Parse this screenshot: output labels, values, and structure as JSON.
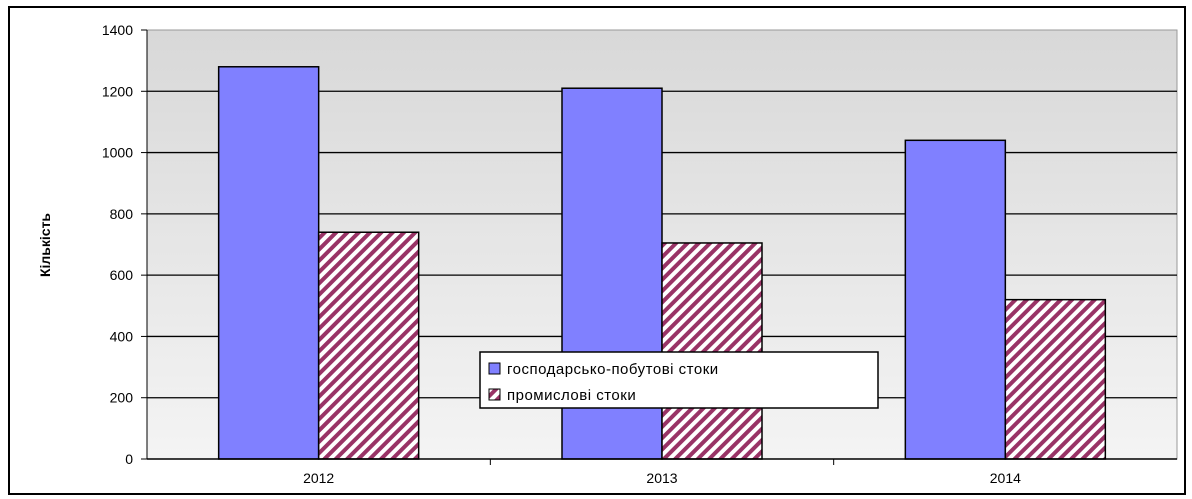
{
  "chart_data": {
    "type": "bar",
    "categories": [
      "2012",
      "2013",
      "2014"
    ],
    "series": [
      {
        "name": "господарсько-побутові стоки",
        "values": [
          1280,
          1210,
          1040
        ],
        "color": "#8080ff",
        "pattern": "solid"
      },
      {
        "name": "промислові стоки",
        "values": [
          740,
          705,
          520
        ],
        "color": "#993366",
        "pattern": "diagonal-hatch"
      }
    ],
    "title": "",
    "xlabel": "",
    "ylabel": "Кількість",
    "ylim": [
      0,
      1400
    ],
    "yticks": [
      0,
      200,
      400,
      600,
      800,
      1000,
      1200,
      1400
    ],
    "grid": true,
    "plot_background": "#e8e8e8",
    "legend_position": "inside-bottom-center"
  }
}
